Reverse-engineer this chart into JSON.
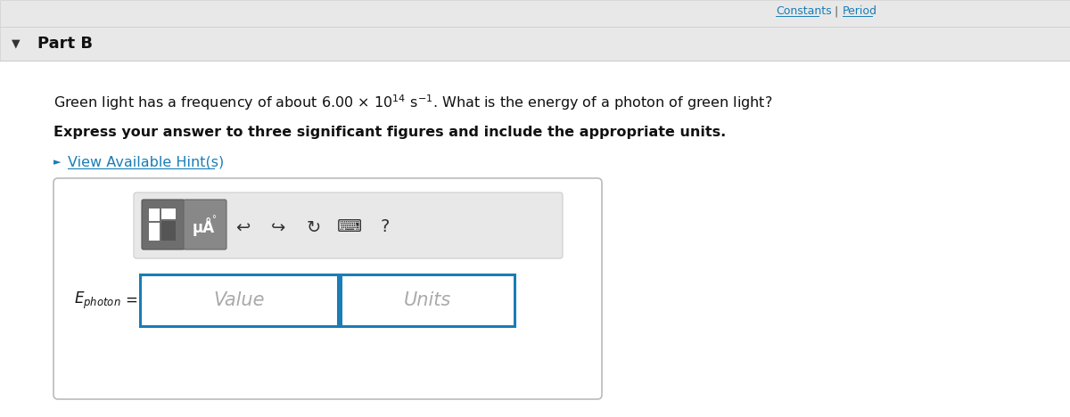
{
  "bg_color": "#f5f5f5",
  "white": "#ffffff",
  "part_b_text": "Part B",
  "triangle_color": "#333333",
  "bold_line": "Express your answer to three significant figures and include the appropriate units.",
  "hint_text": "View Available Hint(s)",
  "hint_color": "#1a7db5",
  "value_placeholder": "Value",
  "units_placeholder": "Units",
  "input_box_color": "#1a7db5",
  "toolbar_bg": "#e8e8e8",
  "toolbar_border": "#cccccc",
  "outer_box_border": "#bbbbbb",
  "top_link_color": "#1a7db5",
  "header_bg": "#e8e8e8",
  "header_border": "#cccccc"
}
